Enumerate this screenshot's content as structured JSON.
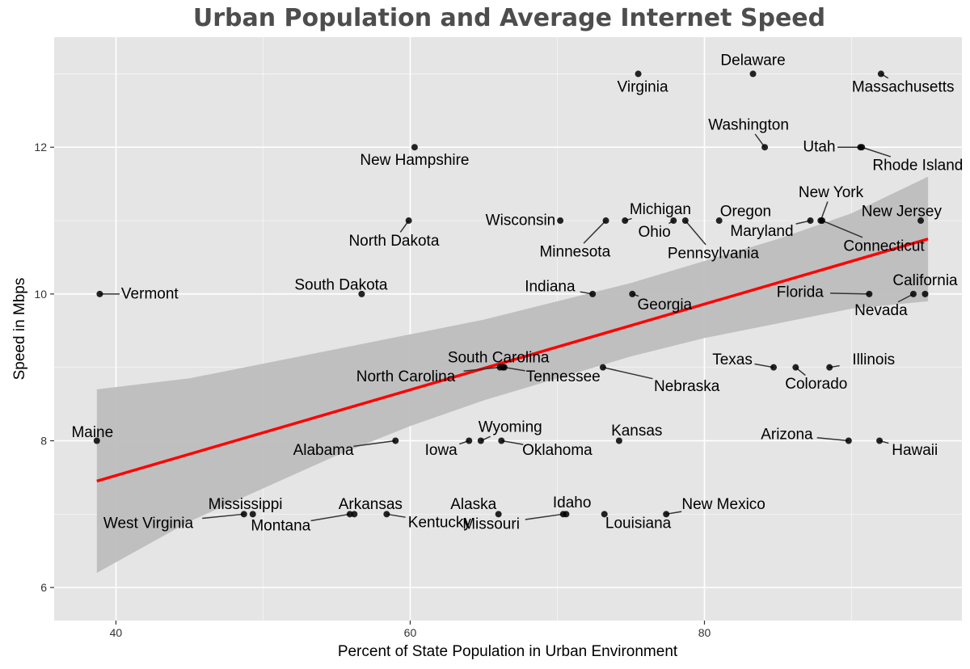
{
  "colors": {
    "panel": "#e5e5e5",
    "grid_major": "#ffffff",
    "point": "#000000",
    "trend": "#ff0000",
    "band": "#bdbdbd",
    "title": "#4d4d4d"
  },
  "chart_data": {
    "type": "scatter",
    "title": "Urban Population and Average Internet Speed",
    "xlabel": "Percent of State Population in Urban Environment",
    "ylabel": "Speed in Mbps",
    "xlim": [
      35.8,
      97.5
    ],
    "ylim": [
      5.55,
      13.5
    ],
    "x_ticks": [
      40,
      60,
      80
    ],
    "y_ticks": [
      6,
      8,
      10,
      12
    ],
    "grid": true,
    "legend": "none",
    "trend_line": {
      "x": [
        38.7,
        95.2
      ],
      "y": [
        7.45,
        10.75
      ]
    },
    "confidence_band": {
      "x": [
        38.7,
        45,
        50,
        55,
        60,
        65,
        70,
        75,
        80,
        85,
        90,
        95.2
      ],
      "lower": [
        6.2,
        6.9,
        7.35,
        7.8,
        8.2,
        8.55,
        8.85,
        9.15,
        9.4,
        9.6,
        9.8,
        9.9
      ],
      "upper": [
        8.7,
        8.85,
        9.05,
        9.25,
        9.45,
        9.65,
        9.9,
        10.15,
        10.45,
        10.75,
        11.1,
        11.6
      ]
    },
    "points": [
      {
        "label": "Delaware",
        "x": 83.3,
        "y": 13.0,
        "lx": 83.3,
        "ly": 13.18
      },
      {
        "label": "Virginia",
        "x": 75.5,
        "y": 13.0,
        "lx": 75.8,
        "ly": 12.82
      },
      {
        "label": "Massachusetts",
        "x": 92.0,
        "y": 13.0,
        "lx": 93.5,
        "ly": 12.82
      },
      {
        "label": "Washington",
        "x": 84.1,
        "y": 12.0,
        "lx": 83.0,
        "ly": 12.3
      },
      {
        "label": "Utah",
        "x": 90.6,
        "y": 12.0,
        "lx": 87.8,
        "ly": 12.0
      },
      {
        "label": "Rhode Island",
        "x": 90.7,
        "y": 12.0,
        "lx": 94.5,
        "ly": 11.75
      },
      {
        "label": "New Hampshire",
        "x": 60.3,
        "y": 12.0,
        "lx": 60.3,
        "ly": 11.82
      },
      {
        "label": "North Dakota",
        "x": 59.9,
        "y": 11.0,
        "lx": 58.9,
        "ly": 10.72
      },
      {
        "label": "Wisconsin",
        "x": 70.2,
        "y": 11.0,
        "lx": 67.5,
        "ly": 11.0
      },
      {
        "label": "Minnesota",
        "x": 73.3,
        "y": 11.0,
        "lx": 71.2,
        "ly": 10.57
      },
      {
        "label": "Michigan",
        "x": 74.6,
        "y": 11.0,
        "lx": 77.0,
        "ly": 11.15
      },
      {
        "label": "Ohio",
        "x": 77.9,
        "y": 11.0,
        "lx": 76.6,
        "ly": 10.84
      },
      {
        "label": "Pennsylvania",
        "x": 78.7,
        "y": 11.0,
        "lx": 80.6,
        "ly": 10.55
      },
      {
        "label": "Oregon",
        "x": 81.0,
        "y": 11.0,
        "lx": 82.8,
        "ly": 11.12
      },
      {
        "label": "New York",
        "x": 87.9,
        "y": 11.0,
        "lx": 88.6,
        "ly": 11.38
      },
      {
        "label": "Maryland",
        "x": 87.2,
        "y": 11.0,
        "lx": 83.9,
        "ly": 10.85
      },
      {
        "label": "New Jersey",
        "x": 94.7,
        "y": 11.0,
        "lx": 93.4,
        "ly": 11.12
      },
      {
        "label": "Connecticut",
        "x": 88.0,
        "y": 11.0,
        "lx": 92.2,
        "ly": 10.65
      },
      {
        "label": "Vermont",
        "x": 38.9,
        "y": 10.0,
        "lx": 42.3,
        "ly": 10.0
      },
      {
        "label": "South Dakota",
        "x": 56.7,
        "y": 10.0,
        "lx": 55.3,
        "ly": 10.12
      },
      {
        "label": "Indiana",
        "x": 72.4,
        "y": 10.0,
        "lx": 69.5,
        "ly": 10.1
      },
      {
        "label": "Georgia",
        "x": 75.1,
        "y": 10.0,
        "lx": 77.3,
        "ly": 9.85
      },
      {
        "label": "Florida",
        "x": 91.2,
        "y": 10.0,
        "lx": 86.5,
        "ly": 10.02
      },
      {
        "label": "California",
        "x": 95.0,
        "y": 10.0,
        "lx": 95.0,
        "ly": 10.18
      },
      {
        "label": "Nevada",
        "x": 94.2,
        "y": 10.0,
        "lx": 92.0,
        "ly": 9.77
      },
      {
        "label": "South Carolina",
        "x": 66.3,
        "y": 9.0,
        "lx": 66.0,
        "ly": 9.13
      },
      {
        "label": "North Carolina",
        "x": 66.1,
        "y": 9.0,
        "lx": 59.7,
        "ly": 8.87
      },
      {
        "label": "Tennessee",
        "x": 66.4,
        "y": 9.0,
        "lx": 70.4,
        "ly": 8.87
      },
      {
        "label": "Nebraska",
        "x": 73.1,
        "y": 9.0,
        "lx": 78.8,
        "ly": 8.74
      },
      {
        "label": "Texas",
        "x": 84.7,
        "y": 9.0,
        "lx": 81.9,
        "ly": 9.1
      },
      {
        "label": "Illinois",
        "x": 88.5,
        "y": 9.0,
        "lx": 91.5,
        "ly": 9.1
      },
      {
        "label": "Colorado",
        "x": 86.2,
        "y": 9.0,
        "lx": 87.6,
        "ly": 8.77
      },
      {
        "label": "Maine",
        "x": 38.7,
        "y": 8.0,
        "lx": 38.4,
        "ly": 8.11
      },
      {
        "label": "Alabama",
        "x": 59.0,
        "y": 8.0,
        "lx": 54.1,
        "ly": 7.87
      },
      {
        "label": "Iowa",
        "x": 64.0,
        "y": 8.0,
        "lx": 62.1,
        "ly": 7.87
      },
      {
        "label": "Wyoming",
        "x": 64.8,
        "y": 8.0,
        "lx": 66.8,
        "ly": 8.18
      },
      {
        "label": "Oklahoma",
        "x": 66.2,
        "y": 8.0,
        "lx": 70.0,
        "ly": 7.87
      },
      {
        "label": "Kansas",
        "x": 74.2,
        "y": 8.0,
        "lx": 75.4,
        "ly": 8.13
      },
      {
        "label": "Arizona",
        "x": 89.8,
        "y": 8.0,
        "lx": 85.6,
        "ly": 8.08
      },
      {
        "label": "Hawaii",
        "x": 91.9,
        "y": 8.0,
        "lx": 94.3,
        "ly": 7.87
      },
      {
        "label": "Mississippi",
        "x": 49.3,
        "y": 7.0,
        "lx": 48.8,
        "ly": 7.13
      },
      {
        "label": "West Virginia",
        "x": 48.7,
        "y": 7.0,
        "lx": 42.2,
        "ly": 6.87
      },
      {
        "label": "Arkansas",
        "x": 56.2,
        "y": 7.0,
        "lx": 57.3,
        "ly": 7.13
      },
      {
        "label": "Montana",
        "x": 55.9,
        "y": 7.0,
        "lx": 51.2,
        "ly": 6.84
      },
      {
        "label": "Kentucky",
        "x": 58.4,
        "y": 7.0,
        "lx": 62.0,
        "ly": 6.88
      },
      {
        "label": "Alaska",
        "x": 66.0,
        "y": 7.0,
        "lx": 64.3,
        "ly": 7.13
      },
      {
        "label": "Missouri",
        "x": 70.4,
        "y": 7.0,
        "lx": 65.5,
        "ly": 6.86
      },
      {
        "label": "Idaho",
        "x": 70.6,
        "y": 7.0,
        "lx": 71.0,
        "ly": 7.15
      },
      {
        "label": "Louisiana",
        "x": 73.2,
        "y": 7.0,
        "lx": 75.5,
        "ly": 6.87
      },
      {
        "label": "New Mexico",
        "x": 77.4,
        "y": 7.0,
        "lx": 81.3,
        "ly": 7.13
      }
    ]
  }
}
